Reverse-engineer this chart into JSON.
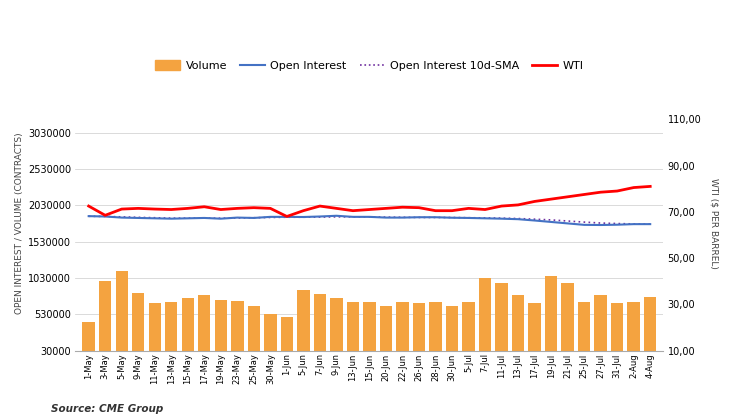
{
  "x_labels": [
    "1-May",
    "3-May",
    "5-May",
    "9-May",
    "11-May",
    "13-May",
    "15-May",
    "17-May",
    "19-May",
    "23-May",
    "25-May",
    "30-May",
    "1-Jun",
    "5-Jun",
    "7-Jun",
    "9-Jun",
    "13-Jun",
    "15-Jun",
    "20-Jun",
    "22-Jun",
    "26-Jun",
    "28-Jun",
    "30-Jun",
    "5-Jul",
    "7-Jul",
    "11-Jul",
    "13-Jul",
    "17-Jul",
    "19-Jul",
    "21-Jul",
    "25-Jul",
    "27-Jul",
    "31-Jul",
    "2-Aug",
    "4-Aug"
  ],
  "volume": [
    430000,
    990000,
    1130000,
    820000,
    690000,
    700000,
    760000,
    800000,
    730000,
    710000,
    650000,
    540000,
    490000,
    870000,
    810000,
    760000,
    700000,
    700000,
    650000,
    700000,
    680000,
    700000,
    650000,
    700000,
    1030000,
    960000,
    800000,
    690000,
    1050000,
    960000,
    700000,
    800000,
    680000,
    700000,
    770000
  ],
  "open_interest": [
    1880000,
    1875000,
    1860000,
    1855000,
    1850000,
    1845000,
    1850000,
    1855000,
    1845000,
    1860000,
    1855000,
    1870000,
    1870000,
    1868000,
    1875000,
    1885000,
    1870000,
    1870000,
    1860000,
    1860000,
    1865000,
    1865000,
    1858000,
    1855000,
    1850000,
    1845000,
    1838000,
    1820000,
    1800000,
    1780000,
    1760000,
    1758000,
    1762000,
    1770000,
    1770000
  ],
  "open_interest_sma": [
    1878000,
    1876000,
    1870000,
    1863000,
    1858000,
    1852000,
    1852000,
    1853000,
    1851000,
    1855000,
    1858000,
    1862000,
    1865000,
    1865000,
    1867000,
    1870000,
    1870000,
    1870000,
    1866000,
    1864000,
    1862000,
    1862000,
    1861000,
    1858000,
    1856000,
    1852000,
    1847000,
    1838000,
    1828000,
    1813000,
    1798000,
    1785000,
    1778000,
    1773000,
    1770000
  ],
  "wti": [
    72.5,
    68.5,
    71.2,
    71.5,
    71.2,
    71.0,
    71.5,
    72.2,
    71.0,
    71.5,
    71.8,
    71.5,
    68.0,
    70.5,
    72.5,
    71.5,
    70.5,
    71.0,
    71.5,
    72.0,
    71.8,
    70.5,
    70.5,
    71.5,
    71.0,
    72.5,
    73.0,
    74.5,
    75.5,
    76.5,
    77.5,
    78.5,
    79.0,
    80.5,
    81.0
  ],
  "volume_color": "#F4A340",
  "open_interest_color": "#4472C4",
  "open_interest_sma_color": "#7030A0",
  "wti_color": "#FF0000",
  "background_color": "#FFFFFF",
  "left_ylim": [
    30000,
    3530000
  ],
  "left_yticks": [
    30000,
    530000,
    1030000,
    1530000,
    2030000,
    2530000,
    3030000
  ],
  "right_ylim": [
    10.0,
    120.0
  ],
  "right_yticks": [
    10.0,
    30.0,
    50.0,
    70.0,
    90.0,
    110.0
  ],
  "left_ylabel": "OPEN INTEREST / VOLUME (CONTRACTS)",
  "right_ylabel": "WTI ($ PER BARREL)",
  "source_text": "Source: CME Group",
  "legend_items": [
    "Volume",
    "Open Interest",
    "Open Interest 10d-SMA",
    "WTI"
  ]
}
